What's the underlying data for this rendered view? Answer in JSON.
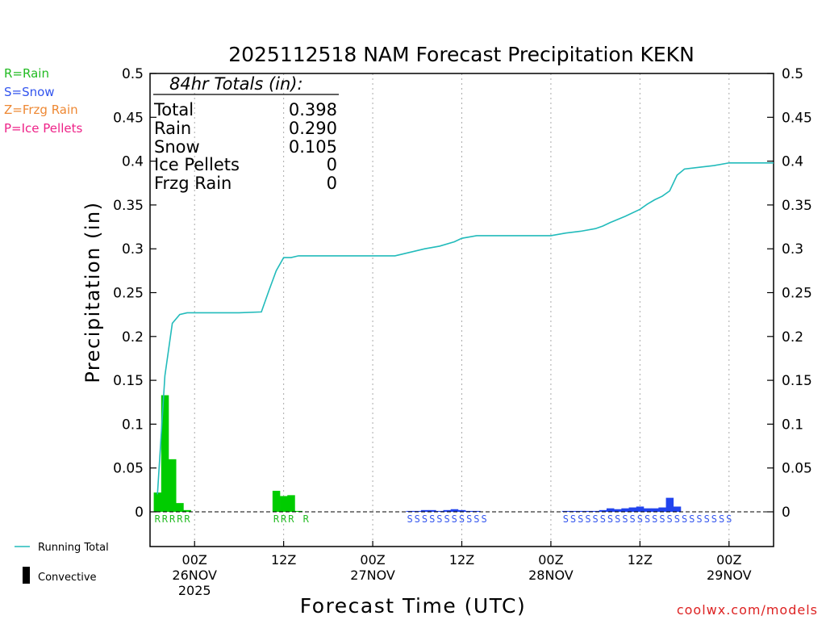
{
  "chart_data": {
    "type": "bar",
    "title": "2025112518 NAM Forecast Precipitation KEKN",
    "xlabel": "Forecast Time (UTC)",
    "ylabel": "Precipitation (in)",
    "ylim": [
      0,
      0.5
    ],
    "xlim": [
      18,
      102
    ],
    "yticks": [
      0,
      0.05,
      0.1,
      0.15,
      0.2,
      0.25,
      0.3,
      0.35,
      0.4,
      0.45,
      0.5
    ],
    "ytick_labels": [
      "0",
      "0.05",
      "0.1",
      "0.15",
      "0.2",
      "0.25",
      "0.3",
      "0.35",
      "0.4",
      "0.45",
      "0.5"
    ],
    "xticks": [
      {
        "hour": 24,
        "lines": [
          "00Z",
          "26NOV",
          "2025"
        ]
      },
      {
        "hour": 36,
        "lines": [
          "12Z"
        ]
      },
      {
        "hour": 48,
        "lines": [
          "00Z",
          "27NOV"
        ]
      },
      {
        "hour": 60,
        "lines": [
          "12Z"
        ]
      },
      {
        "hour": 72,
        "lines": [
          "00Z",
          "28NOV"
        ]
      },
      {
        "hour": 84,
        "lines": [
          "12Z"
        ]
      },
      {
        "hour": 96,
        "lines": [
          "00Z",
          "29NOV"
        ]
      }
    ],
    "legend": [
      {
        "label": "R=Rain",
        "color": "#22bb22"
      },
      {
        "label": "S=Snow",
        "color": "#3355ee"
      },
      {
        "label": "Z=Frzg Rain",
        "color": "#ee8833"
      },
      {
        "label": "P=Ice Pellets",
        "color": "#ee2288"
      }
    ],
    "legend_bottom": {
      "running_total": "Running Total",
      "convective": "Convective"
    },
    "totals": {
      "header": "84hr Totals (in):",
      "rows": [
        {
          "label": "Total",
          "value": "0.398"
        },
        {
          "label": "Rain",
          "value": "0.290"
        },
        {
          "label": "Snow",
          "value": "0.105"
        },
        {
          "label": "Ice Pellets",
          "value": "0"
        },
        {
          "label": "Frzg Rain",
          "value": "0"
        }
      ]
    },
    "series": [
      {
        "name": "Rain",
        "color": "#00cc00",
        "points": [
          [
            19,
            0.022
          ],
          [
            20,
            0.133
          ],
          [
            21,
            0.06
          ],
          [
            22,
            0.01
          ],
          [
            23,
            0.002
          ],
          [
            35,
            0.024
          ],
          [
            36,
            0.018
          ],
          [
            37,
            0.019
          ],
          [
            38,
            0.001
          ]
        ]
      },
      {
        "name": "Snow",
        "color": "#2244ee",
        "points": [
          [
            53,
            0.001
          ],
          [
            54,
            0.001
          ],
          [
            55,
            0.002
          ],
          [
            56,
            0.002
          ],
          [
            57,
            0.001
          ],
          [
            58,
            0.002
          ],
          [
            59,
            0.003
          ],
          [
            60,
            0.002
          ],
          [
            61,
            0.001
          ],
          [
            62,
            0.001
          ],
          [
            74,
            0.001
          ],
          [
            75,
            0.001
          ],
          [
            76,
            0.001
          ],
          [
            77,
            0.001
          ],
          [
            78,
            0.001
          ],
          [
            79,
            0.002
          ],
          [
            80,
            0.004
          ],
          [
            81,
            0.003
          ],
          [
            82,
            0.004
          ],
          [
            83,
            0.005
          ],
          [
            84,
            0.006
          ],
          [
            85,
            0.004
          ],
          [
            86,
            0.004
          ],
          [
            87,
            0.005
          ],
          [
            88,
            0.016
          ],
          [
            89,
            0.006
          ]
        ]
      }
    ],
    "running_total": {
      "name": "Running Total",
      "color": "#22bbbb",
      "points": [
        [
          19,
          0.02
        ],
        [
          20,
          0.155
        ],
        [
          21,
          0.215
        ],
        [
          22,
          0.225
        ],
        [
          23,
          0.227
        ],
        [
          24,
          0.227
        ],
        [
          30,
          0.227
        ],
        [
          33,
          0.228
        ],
        [
          34,
          0.252
        ],
        [
          35,
          0.275
        ],
        [
          36,
          0.29
        ],
        [
          37,
          0.29
        ],
        [
          38,
          0.292
        ],
        [
          42,
          0.292
        ],
        [
          48,
          0.292
        ],
        [
          51,
          0.292
        ],
        [
          53,
          0.296
        ],
        [
          55,
          0.3
        ],
        [
          57,
          0.303
        ],
        [
          59,
          0.308
        ],
        [
          60,
          0.312
        ],
        [
          62,
          0.315
        ],
        [
          64,
          0.315
        ],
        [
          68,
          0.315
        ],
        [
          72,
          0.315
        ],
        [
          74,
          0.318
        ],
        [
          76,
          0.32
        ],
        [
          78,
          0.323
        ],
        [
          79,
          0.326
        ],
        [
          80,
          0.33
        ],
        [
          82,
          0.337
        ],
        [
          84,
          0.345
        ],
        [
          85,
          0.351
        ],
        [
          86,
          0.356
        ],
        [
          87,
          0.36
        ],
        [
          88,
          0.366
        ],
        [
          89,
          0.384
        ],
        [
          90,
          0.391
        ],
        [
          92,
          0.393
        ],
        [
          94,
          0.395
        ],
        [
          96,
          0.398
        ],
        [
          102,
          0.398
        ]
      ]
    },
    "precip_type_codes": [
      {
        "text": "RRRRR",
        "start_hour": 19,
        "color": "#22bb22"
      },
      {
        "text": "RRR R",
        "start_hour": 35,
        "color": "#22bb22"
      },
      {
        "text": "SSSSSSSSSSS",
        "start_hour": 53,
        "color": "#3355ee"
      },
      {
        "text": "SSSSSSSSSSSSSSSSSSSSSSS",
        "start_hour": 74,
        "color": "#3355ee"
      }
    ]
  },
  "watermark": "coolwx.com/models"
}
